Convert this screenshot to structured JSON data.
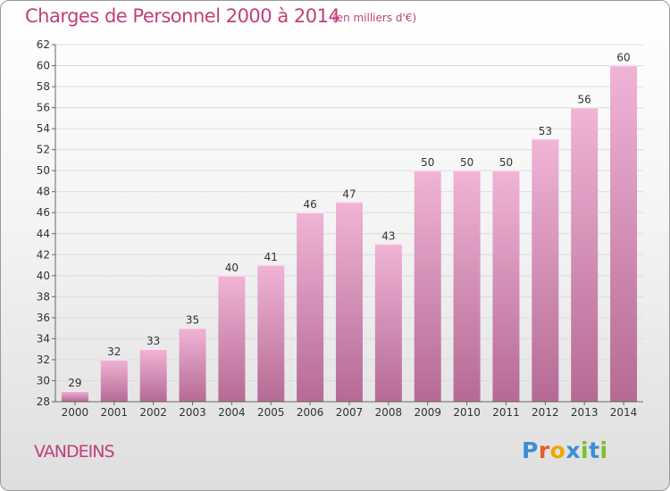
{
  "header": {
    "title": "Charges de Personnel 2000 à 2014",
    "unit": "(en milliers d'€)"
  },
  "footer": {
    "commune": "VANDEINS"
  },
  "logo": {
    "text": "Proxiti",
    "letters": [
      "P",
      "r",
      "o",
      "x",
      "i",
      "t",
      "i"
    ],
    "colors": [
      "#3a8fd6",
      "#e85b2a",
      "#f0a500",
      "#3a8fd6",
      "#7cbf2a",
      "#3a8fd6",
      "#7cbf2a"
    ]
  },
  "colors": {
    "accent": "#c0407a",
    "bar_top": "#f0b4d6",
    "bar_bottom": "#b56a94"
  },
  "chart_data": {
    "type": "bar",
    "title": "Charges de Personnel 2000 à 2014",
    "subtitle": "(en milliers d'€)",
    "xlabel": "",
    "ylabel": "",
    "categories": [
      "2000",
      "2001",
      "2002",
      "2003",
      "2004",
      "2005",
      "2006",
      "2007",
      "2008",
      "2009",
      "2010",
      "2011",
      "2012",
      "2013",
      "2014"
    ],
    "values": [
      29,
      32,
      33,
      35,
      40,
      41,
      46,
      47,
      43,
      50,
      50,
      50,
      53,
      56,
      60
    ],
    "ylim": [
      28,
      62
    ],
    "yticks": [
      28,
      30,
      32,
      34,
      36,
      38,
      40,
      42,
      44,
      46,
      48,
      50,
      52,
      54,
      56,
      58,
      60,
      62
    ],
    "grid": true,
    "legend": "none"
  }
}
